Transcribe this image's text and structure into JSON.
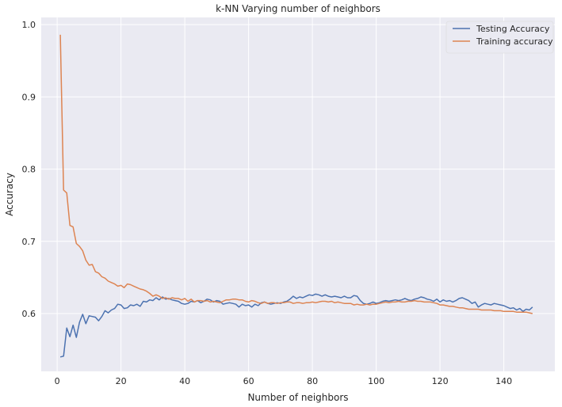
{
  "chart_data": {
    "type": "line",
    "title": "k-NN Varying number of neighbors",
    "xlabel": "Number of neighbors",
    "ylabel": "Accuracy",
    "xlim": [
      -5,
      156
    ],
    "ylim": [
      0.52,
      1.01
    ],
    "xticks": [
      0,
      20,
      40,
      60,
      80,
      100,
      120,
      140
    ],
    "yticks": [
      0.6,
      0.7,
      0.8,
      0.9,
      1.0
    ],
    "xtick_labels": [
      "0",
      "20",
      "40",
      "60",
      "80",
      "100",
      "120",
      "140"
    ],
    "ytick_labels": [
      "0.6",
      "0.7",
      "0.8",
      "0.9",
      "1.0"
    ],
    "grid": true,
    "legend_position": "top-right",
    "x": [
      1,
      2,
      3,
      4,
      5,
      6,
      7,
      8,
      9,
      10,
      11,
      12,
      13,
      14,
      15,
      16,
      17,
      18,
      19,
      20,
      21,
      22,
      23,
      24,
      25,
      26,
      27,
      28,
      29,
      30,
      31,
      32,
      33,
      34,
      35,
      36,
      37,
      38,
      39,
      40,
      41,
      42,
      43,
      44,
      45,
      46,
      47,
      48,
      49,
      50,
      51,
      52,
      53,
      54,
      55,
      56,
      57,
      58,
      59,
      60,
      61,
      62,
      63,
      64,
      65,
      66,
      67,
      68,
      69,
      70,
      71,
      72,
      73,
      74,
      75,
      76,
      77,
      78,
      79,
      80,
      81,
      82,
      83,
      84,
      85,
      86,
      87,
      88,
      89,
      90,
      91,
      92,
      93,
      94,
      95,
      96,
      97,
      98,
      99,
      100,
      101,
      102,
      103,
      104,
      105,
      106,
      107,
      108,
      109,
      110,
      111,
      112,
      113,
      114,
      115,
      116,
      117,
      118,
      119,
      120,
      121,
      122,
      123,
      124,
      125,
      126,
      127,
      128,
      129,
      130,
      131,
      132,
      133,
      134,
      135,
      136,
      137,
      138,
      139,
      140,
      141,
      142,
      143,
      144,
      145,
      146,
      147,
      148,
      149
    ],
    "series": [
      {
        "name": "Testing Accuracy",
        "color": "#4c72b0",
        "values": [
          0.54,
          0.541,
          0.58,
          0.568,
          0.584,
          0.567,
          0.588,
          0.599,
          0.586,
          0.597,
          0.596,
          0.595,
          0.59,
          0.596,
          0.604,
          0.601,
          0.605,
          0.607,
          0.613,
          0.612,
          0.607,
          0.608,
          0.612,
          0.611,
          0.613,
          0.61,
          0.617,
          0.616,
          0.619,
          0.618,
          0.622,
          0.619,
          0.623,
          0.62,
          0.621,
          0.619,
          0.618,
          0.617,
          0.614,
          0.613,
          0.614,
          0.617,
          0.616,
          0.618,
          0.615,
          0.617,
          0.62,
          0.619,
          0.616,
          0.618,
          0.617,
          0.613,
          0.614,
          0.615,
          0.614,
          0.613,
          0.609,
          0.613,
          0.611,
          0.612,
          0.609,
          0.613,
          0.611,
          0.615,
          0.616,
          0.614,
          0.613,
          0.614,
          0.615,
          0.614,
          0.616,
          0.617,
          0.62,
          0.624,
          0.621,
          0.623,
          0.622,
          0.624,
          0.626,
          0.625,
          0.627,
          0.626,
          0.624,
          0.626,
          0.624,
          0.623,
          0.624,
          0.623,
          0.622,
          0.624,
          0.622,
          0.622,
          0.625,
          0.624,
          0.618,
          0.614,
          0.613,
          0.614,
          0.616,
          0.614,
          0.615,
          0.617,
          0.618,
          0.617,
          0.618,
          0.619,
          0.618,
          0.619,
          0.621,
          0.619,
          0.618,
          0.62,
          0.621,
          0.623,
          0.622,
          0.62,
          0.619,
          0.617,
          0.62,
          0.616,
          0.619,
          0.617,
          0.618,
          0.616,
          0.618,
          0.621,
          0.622,
          0.62,
          0.618,
          0.614,
          0.616,
          0.609,
          0.612,
          0.614,
          0.613,
          0.612,
          0.614,
          0.613,
          0.612,
          0.611,
          0.609,
          0.607,
          0.608,
          0.605,
          0.607,
          0.603,
          0.606,
          0.605,
          0.609
        ]
      },
      {
        "name": "Training accuracy",
        "color": "#dd8452",
        "values": [
          0.986,
          0.771,
          0.767,
          0.722,
          0.72,
          0.697,
          0.693,
          0.687,
          0.674,
          0.667,
          0.668,
          0.658,
          0.656,
          0.651,
          0.649,
          0.645,
          0.643,
          0.641,
          0.638,
          0.639,
          0.636,
          0.641,
          0.64,
          0.638,
          0.636,
          0.634,
          0.633,
          0.631,
          0.628,
          0.624,
          0.626,
          0.624,
          0.621,
          0.622,
          0.62,
          0.622,
          0.621,
          0.621,
          0.619,
          0.621,
          0.617,
          0.62,
          0.616,
          0.618,
          0.618,
          0.617,
          0.618,
          0.616,
          0.617,
          0.616,
          0.615,
          0.617,
          0.619,
          0.619,
          0.62,
          0.62,
          0.619,
          0.619,
          0.617,
          0.616,
          0.618,
          0.617,
          0.615,
          0.614,
          0.616,
          0.614,
          0.615,
          0.615,
          0.614,
          0.615,
          0.615,
          0.616,
          0.616,
          0.614,
          0.615,
          0.615,
          0.614,
          0.615,
          0.615,
          0.616,
          0.615,
          0.616,
          0.617,
          0.617,
          0.616,
          0.617,
          0.615,
          0.616,
          0.615,
          0.614,
          0.614,
          0.614,
          0.612,
          0.613,
          0.612,
          0.612,
          0.613,
          0.612,
          0.613,
          0.613,
          0.614,
          0.615,
          0.616,
          0.615,
          0.616,
          0.616,
          0.617,
          0.616,
          0.616,
          0.617,
          0.617,
          0.618,
          0.617,
          0.617,
          0.616,
          0.616,
          0.616,
          0.615,
          0.614,
          0.612,
          0.612,
          0.611,
          0.61,
          0.61,
          0.609,
          0.608,
          0.608,
          0.607,
          0.606,
          0.606,
          0.606,
          0.606,
          0.605,
          0.605,
          0.605,
          0.605,
          0.604,
          0.604,
          0.604,
          0.603,
          0.603,
          0.603,
          0.603,
          0.602,
          0.602,
          0.602,
          0.602,
          0.601,
          0.6
        ]
      }
    ]
  }
}
